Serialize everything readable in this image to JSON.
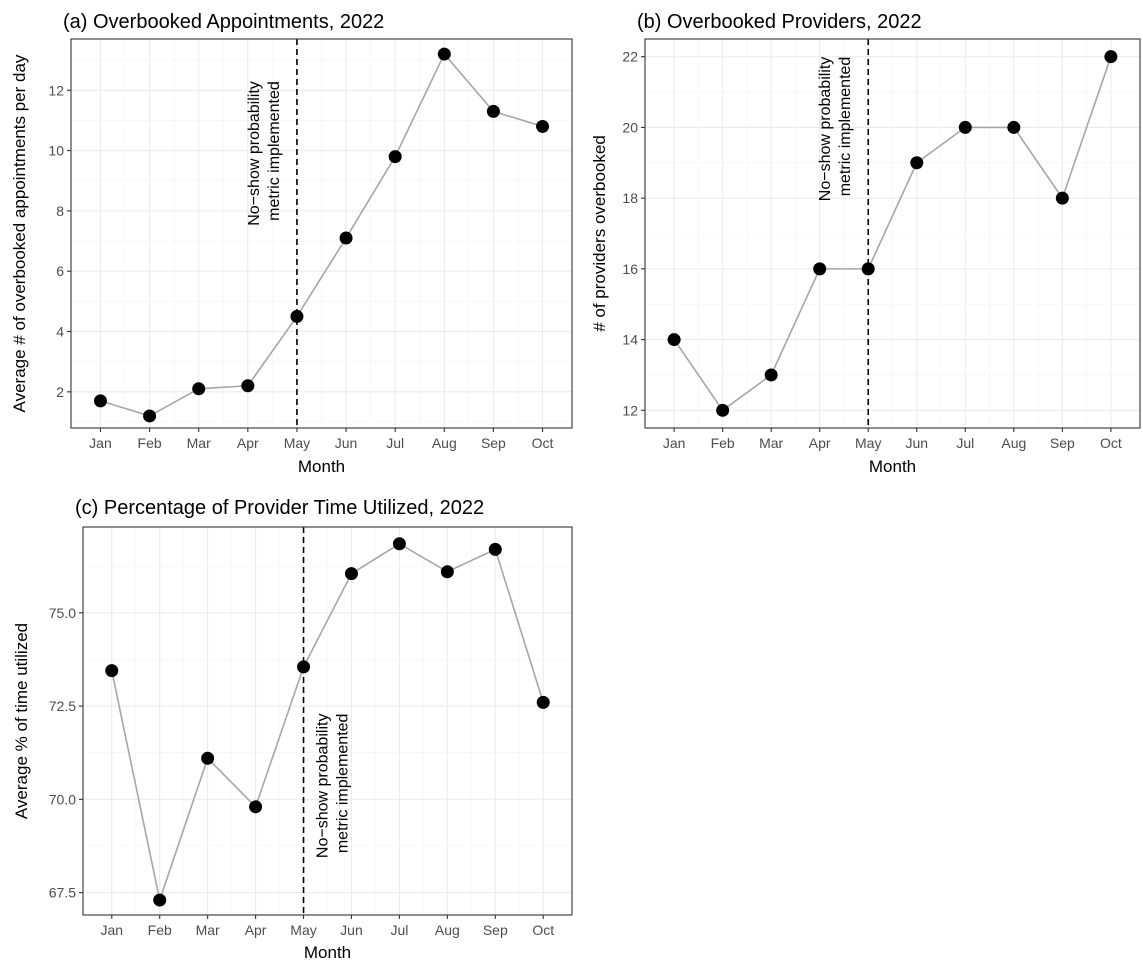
{
  "chart_data": [
    {
      "type": "line",
      "title": "(a) Overbooked Appointments, 2022",
      "xlabel": "Month",
      "ylabel": "Average # of overbooked appointments per day",
      "categories": [
        "Jan",
        "Feb",
        "Mar",
        "Apr",
        "May",
        "Jun",
        "Jul",
        "Aug",
        "Sep",
        "Oct"
      ],
      "values": [
        1.7,
        1.2,
        2.1,
        2.2,
        4.5,
        7.1,
        9.8,
        13.2,
        11.3,
        10.8
      ],
      "ylim": [
        0.8,
        13.7
      ],
      "yticks": [
        2,
        4,
        6,
        8,
        10,
        12
      ],
      "ytick_labels": [
        "2",
        "4",
        "6",
        "8",
        "10",
        "12"
      ],
      "grid": true,
      "vline": {
        "category": "May",
        "style": "dashed"
      },
      "annotation": [
        "No−show probability",
        "metric implemented"
      ],
      "annotation_side": "left",
      "annotation_top_value": 12.3
    },
    {
      "type": "line",
      "title": "(b) Overbooked Providers, 2022",
      "xlabel": "Month",
      "ylabel": "# of providers overbooked",
      "categories": [
        "Jan",
        "Feb",
        "Mar",
        "Apr",
        "May",
        "Jun",
        "Jul",
        "Aug",
        "Sep",
        "Oct"
      ],
      "values": [
        14,
        12,
        13,
        16,
        16,
        19,
        20,
        20,
        18,
        22
      ],
      "ylim": [
        11.5,
        22.5
      ],
      "yticks": [
        12,
        14,
        16,
        18,
        20,
        22
      ],
      "ytick_labels": [
        "12",
        "14",
        "16",
        "18",
        "20",
        "22"
      ],
      "grid": true,
      "vline": {
        "category": "May",
        "style": "dashed"
      },
      "annotation": [
        "No−show probability",
        "metric implemented"
      ],
      "annotation_side": "left",
      "annotation_top_value": 22.0
    },
    {
      "type": "line",
      "title": "(c) Percentage of Provider Time Utilized, 2022",
      "xlabel": "Month",
      "ylabel": "Average % of time utilized",
      "categories": [
        "Jan",
        "Feb",
        "Mar",
        "Apr",
        "May",
        "Jun",
        "Jul",
        "Aug",
        "Sep",
        "Oct"
      ],
      "values": [
        73.45,
        67.3,
        71.1,
        69.8,
        73.55,
        76.05,
        76.85,
        76.1,
        76.7,
        72.6
      ],
      "ylim": [
        66.9,
        77.3
      ],
      "yticks": [
        67.5,
        70.0,
        72.5,
        75.0
      ],
      "ytick_labels": [
        "67.5",
        "70.0",
        "72.5",
        "75.0"
      ],
      "grid": true,
      "vline": {
        "category": "May",
        "style": "dashed"
      },
      "annotation": [
        "No−show probability",
        "metric implemented"
      ],
      "annotation_side": "right",
      "annotation_top_value": 72.3
    }
  ]
}
